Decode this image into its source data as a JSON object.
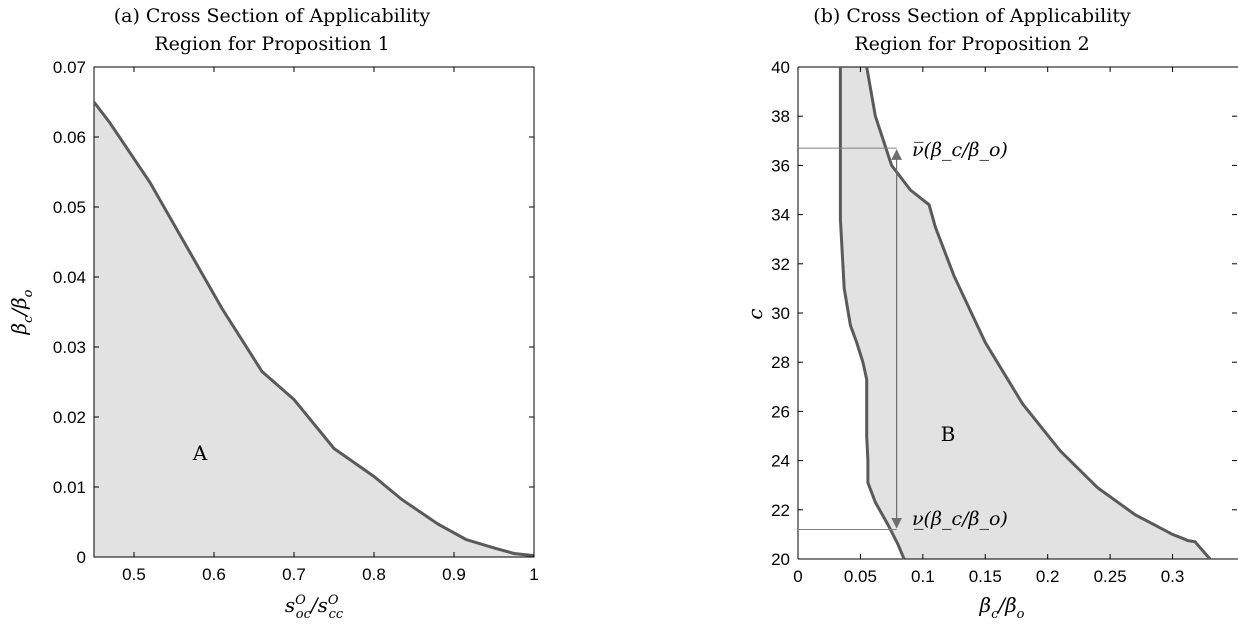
{
  "chart_data": [
    {
      "type": "area",
      "title_line1": "(a) Cross Section of Applicability",
      "title_line2": "Region for Proposition 1",
      "xlabel": "s^O_oc / s^O_cc",
      "ylabel": "β_c / β_o",
      "xlim": [
        0.45,
        1.0
      ],
      "ylim": [
        0,
        0.07
      ],
      "xticks": [
        "0.5",
        "0.6",
        "0.7",
        "0.8",
        "0.9",
        "1"
      ],
      "yticks": [
        "0",
        "0.01",
        "0.02",
        "0.03",
        "0.04",
        "0.05",
        "0.06",
        "0.07"
      ],
      "region_label": "A",
      "boundary": {
        "x": [
          0.45,
          0.47,
          0.52,
          0.56,
          0.61,
          0.66,
          0.7,
          0.75,
          0.8,
          0.835,
          0.88,
          0.915,
          0.95,
          0.975,
          1.0
        ],
        "y": [
          0.065,
          0.062,
          0.0535,
          0.0455,
          0.0355,
          0.0265,
          0.0225,
          0.0155,
          0.0115,
          0.0082,
          0.0047,
          0.0025,
          0.0013,
          0.0005,
          0.0002
        ]
      }
    },
    {
      "type": "area",
      "title_line1": "(b) Cross Section of Applicability",
      "title_line2": "Region for Proposition 2",
      "xlabel": "β_c / β_o",
      "ylabel": "c",
      "xlim": [
        0,
        0.35
      ],
      "ylim": [
        20,
        40
      ],
      "xticks": [
        "0",
        "0.05",
        "0.1",
        "0.15",
        "0.2",
        "0.25",
        "0.3"
      ],
      "yticks": [
        "20",
        "22",
        "24",
        "26",
        "28",
        "30",
        "32",
        "34",
        "36",
        "38",
        "40"
      ],
      "region_label": "B",
      "upper_label": "ν̅(β_c/β_o)",
      "lower_label": "ν̲(β_c/β_o)",
      "upper_marker": {
        "x": 0.079,
        "y": 36.7
      },
      "lower_marker": {
        "x": 0.079,
        "y": 21.2
      },
      "left_boundary": {
        "x": [
          0.034,
          0.034,
          0.037,
          0.042,
          0.047,
          0.052,
          0.055,
          0.055,
          0.056,
          0.056,
          0.062,
          0.072,
          0.08,
          0.085
        ],
        "y": [
          40,
          33.8,
          31.0,
          29.5,
          28.8,
          28.0,
          27.3,
          25.0,
          24.0,
          23.1,
          22.3,
          21.4,
          20.6,
          20
        ]
      },
      "right_boundary": {
        "x": [
          0.055,
          0.062,
          0.075,
          0.09,
          0.105,
          0.11,
          0.125,
          0.15,
          0.18,
          0.21,
          0.24,
          0.27,
          0.3,
          0.31,
          0.312,
          0.318,
          0.33
        ],
        "y": [
          40,
          38.0,
          36.0,
          35.0,
          34.4,
          33.5,
          31.5,
          28.8,
          26.3,
          24.4,
          22.9,
          21.8,
          21.0,
          20.8,
          20.75,
          20.7,
          20
        ]
      }
    }
  ]
}
